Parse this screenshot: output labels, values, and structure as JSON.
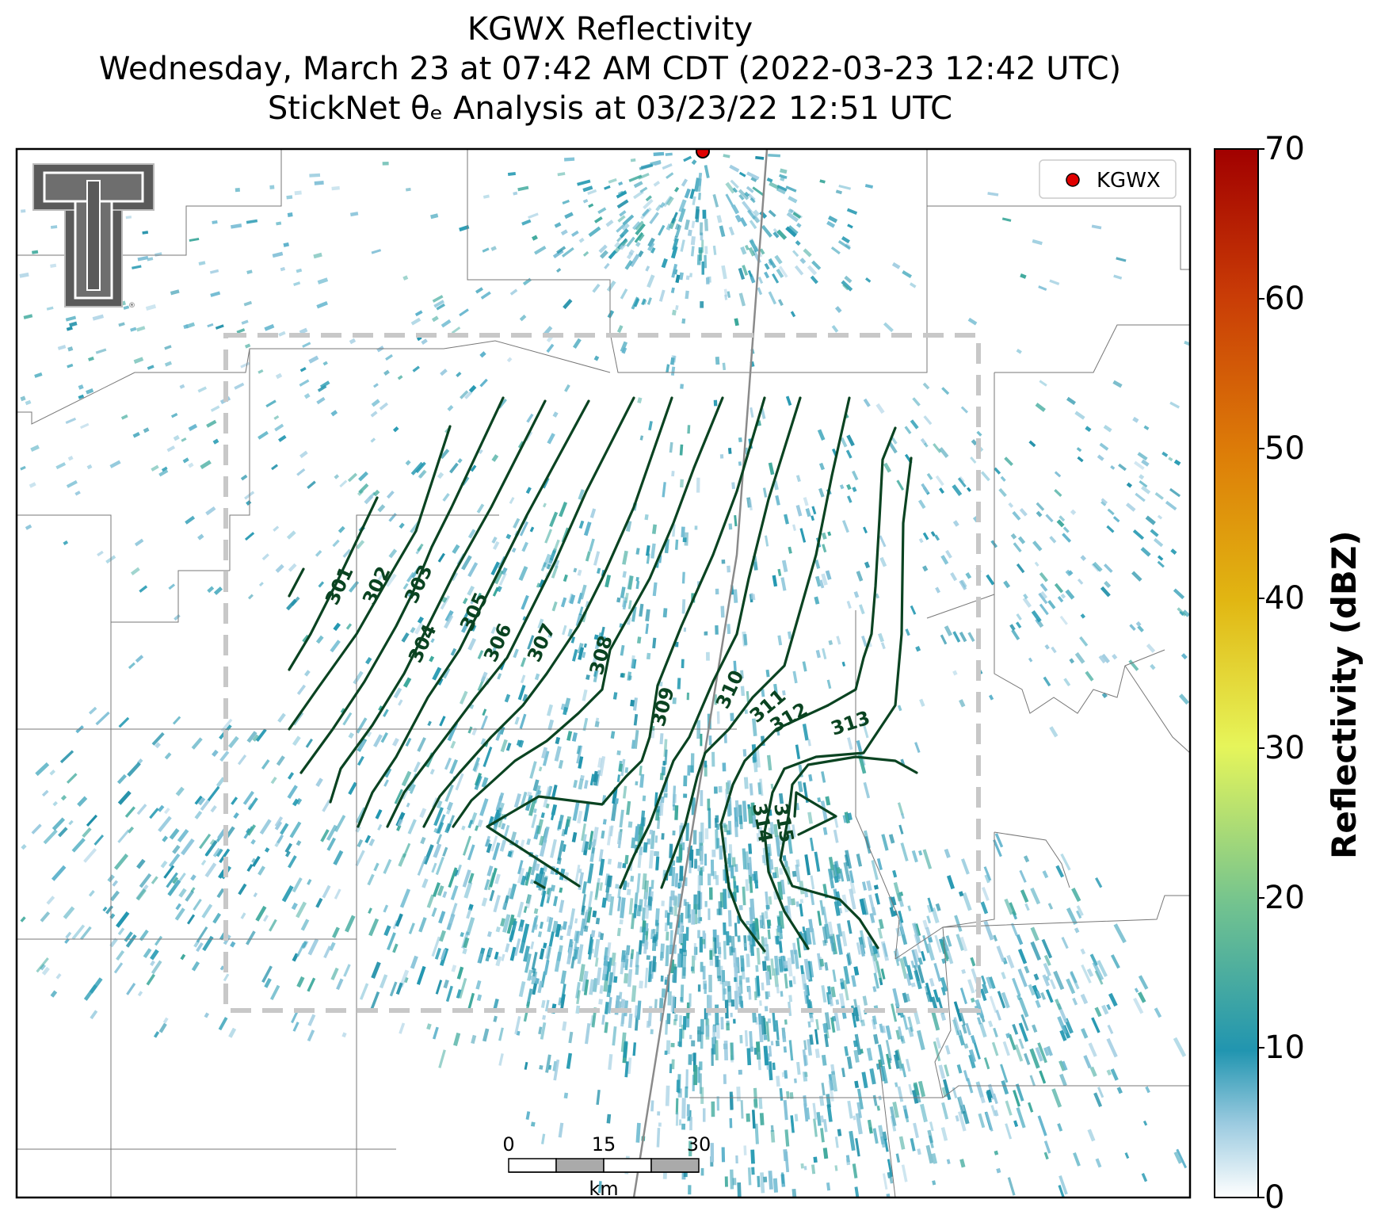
{
  "title": {
    "line1": "KGWX Reflectivity",
    "line2": "Wednesday, March 23 at 07:42 AM CDT (2022-03-23 12:42 UTC)",
    "line3": "StickNet θₑ Analysis at 03/23/22 12:51 UTC"
  },
  "legend": {
    "label": "KGWX",
    "marker_color": "#e00000"
  },
  "colorbar": {
    "label": "Reflectivity (dBZ)",
    "ticks": [
      "0",
      "10",
      "20",
      "30",
      "40",
      "50",
      "60",
      "70"
    ],
    "range": [
      0,
      70
    ]
  },
  "contours": {
    "color": "#0a4321",
    "labels": [
      "301",
      "302",
      "303",
      "304",
      "305",
      "306",
      "307",
      "308",
      "309",
      "310",
      "311",
      "312",
      "313",
      "314",
      "315"
    ]
  },
  "scale_bar": {
    "ticks": [
      "0",
      "15",
      "30"
    ],
    "unit": "km"
  },
  "logo": {
    "name": "texas-tech-double-t"
  }
}
